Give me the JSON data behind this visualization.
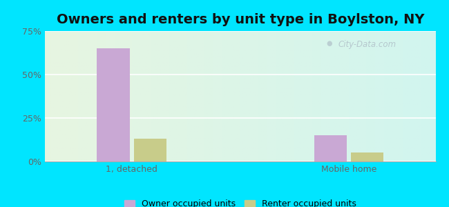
{
  "title": "Owners and renters by unit type in Boylston, NY",
  "categories": [
    "1, detached",
    "Mobile home"
  ],
  "owner_values": [
    65,
    15
  ],
  "renter_values": [
    13,
    5
  ],
  "owner_color": "#c9a8d4",
  "renter_color": "#c8cc8a",
  "bar_width": 0.3,
  "ylim": [
    0,
    75
  ],
  "yticks": [
    0,
    25,
    50,
    75
  ],
  "ytick_labels": [
    "0%",
    "25%",
    "50%",
    "75%"
  ],
  "outer_bg": "#00e5ff",
  "legend_labels": [
    "Owner occupied units",
    "Renter occupied units"
  ],
  "watermark": "City-Data.com",
  "title_fontsize": 14,
  "tick_fontsize": 9,
  "legend_fontsize": 9
}
